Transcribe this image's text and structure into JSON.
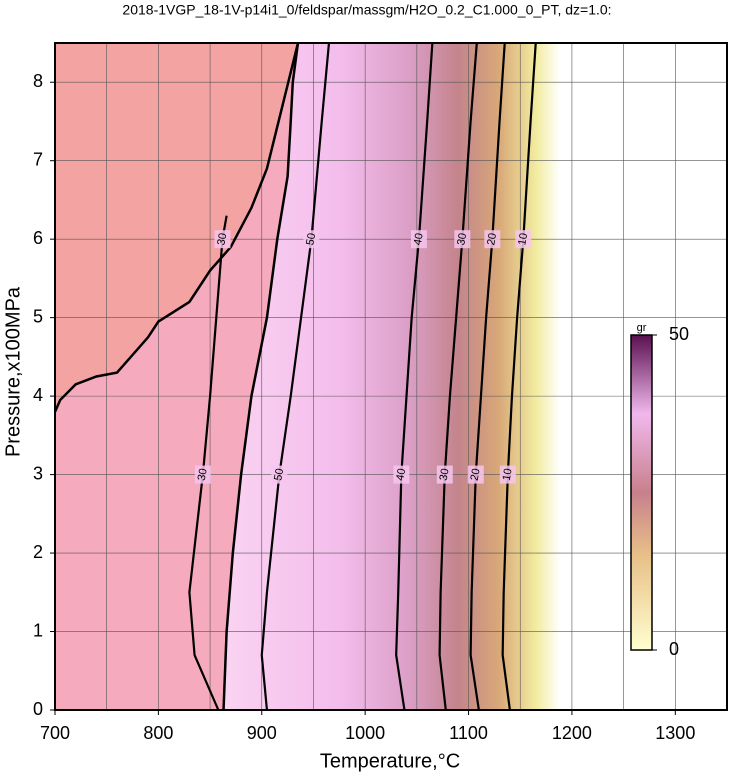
{
  "chart_data": {
    "type": "contour",
    "title": "2018-1VGP_18-1V-p14i1_0/feldspar/massgm/H2O_0.2_C1.000_0_PT, dz=1.0:",
    "xlabel": "Temperature,°C",
    "ylabel": "Pressure,x100MPa",
    "xlim": [
      700,
      1350
    ],
    "ylim": [
      0,
      8.5
    ],
    "xticks": [
      700,
      800,
      900,
      1000,
      1100,
      1200,
      1300
    ],
    "xminorticks": [
      750,
      850,
      950,
      1050,
      1150,
      1250,
      1350
    ],
    "yticks": [
      0,
      1,
      2,
      3,
      4,
      5,
      6,
      7,
      8
    ],
    "grid": true,
    "contours": [
      {
        "level": 30,
        "x": [
          858,
          835,
          830,
          843,
          850,
          856,
          862,
          866
        ],
        "y": [
          0,
          0.7,
          1.5,
          3,
          4,
          5,
          6,
          6.3
        ]
      },
      {
        "level": 50,
        "x": [
          905,
          900,
          905,
          917,
          928,
          938,
          948,
          958,
          965
        ],
        "y": [
          0,
          0.7,
          1.5,
          3,
          4,
          5,
          6,
          7.5,
          8.5
        ]
      },
      {
        "level": 40,
        "x": [
          1038,
          1030,
          1032,
          1035,
          1040,
          1045,
          1052,
          1060,
          1065
        ],
        "y": [
          0,
          0.7,
          1.5,
          3,
          4,
          5,
          6,
          7.5,
          8.5
        ]
      },
      {
        "level": 30,
        "x": [
          1078,
          1072,
          1073,
          1077,
          1082,
          1088,
          1094,
          1102,
          1108
        ],
        "y": [
          0,
          0.7,
          1.5,
          3,
          4,
          5,
          6,
          7.5,
          8.5
        ]
      },
      {
        "level": 20,
        "x": [
          1110,
          1102,
          1103,
          1107,
          1112,
          1117,
          1123,
          1130,
          1135
        ],
        "y": [
          0,
          0.7,
          1.5,
          3,
          4,
          5,
          6,
          7.5,
          8.5
        ]
      },
      {
        "level": 10,
        "x": [
          1140,
          1133,
          1134,
          1138,
          1142,
          1147,
          1153,
          1160,
          1165
        ],
        "y": [
          0,
          0.7,
          1.5,
          3,
          4,
          5,
          6,
          7.5,
          8.5
        ]
      }
    ],
    "boundaries": [
      {
        "x": [
          863,
          866,
          872,
          880,
          890,
          905,
          915,
          925,
          928,
          930,
          935
        ],
        "y": [
          0,
          1,
          2,
          3,
          4,
          5,
          6,
          6.8,
          7.5,
          8,
          8.5
        ]
      },
      {
        "x": [
          700,
          705,
          720,
          740,
          760,
          790,
          800,
          830,
          850,
          870,
          890,
          905,
          920,
          935
        ],
        "y": [
          3.8,
          3.95,
          4.15,
          4.25,
          4.3,
          4.75,
          4.95,
          5.2,
          5.6,
          5.9,
          6.4,
          6.9,
          7.7,
          8.5
        ]
      }
    ],
    "colorbar": {
      "label": "gr",
      "lim": [
        0,
        50
      ],
      "ticks": [
        0,
        50
      ]
    }
  }
}
